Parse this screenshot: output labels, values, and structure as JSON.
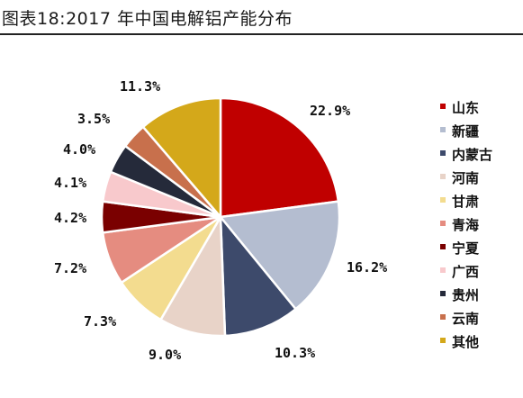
{
  "header": {
    "title": "图表18:2017 年中国电解铝产能分布"
  },
  "chart_data": {
    "type": "pie",
    "title": "",
    "categories": [
      "山东",
      "新疆",
      "内蒙古",
      "河南",
      "甘肃",
      "青海",
      "宁夏",
      "广西",
      "贵州",
      "云南",
      "其他"
    ],
    "values": [
      22.9,
      16.2,
      10.3,
      9.0,
      7.3,
      7.2,
      4.2,
      4.1,
      4.0,
      3.5,
      11.3
    ],
    "labels": [
      "22.9%",
      "16.2%",
      "10.3%",
      "9.0%",
      "7.3%",
      "7.2%",
      "4.2%",
      "4.1%",
      "4.0%",
      "3.5%",
      "11.3%"
    ],
    "colors": [
      "#c00000",
      "#b4bdd0",
      "#3d4a6b",
      "#e8d3c8",
      "#f3dc8f",
      "#e58c80",
      "#7a0000",
      "#f8c9cc",
      "#252a3a",
      "#c8704c",
      "#d4a81a"
    ],
    "legend_position": "right",
    "start_angle": "12 o'clock",
    "direction": "clockwise"
  }
}
